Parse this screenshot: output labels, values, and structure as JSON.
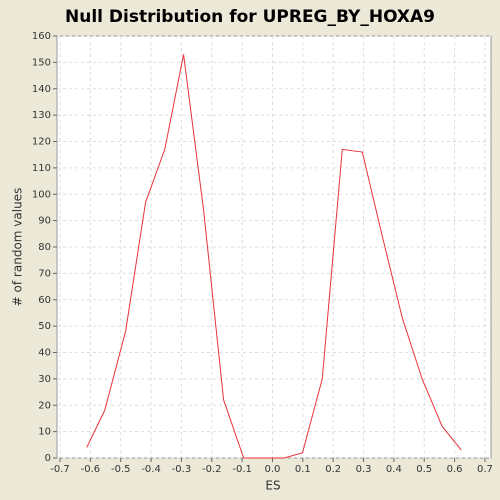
{
  "chart_data": {
    "type": "line",
    "title": "Null Distribution for UPREG_BY_HOXA9",
    "xlabel": "ES",
    "ylabel": "# of random values",
    "x": [
      -0.612,
      -0.553,
      -0.484,
      -0.418,
      -0.355,
      -0.293,
      -0.227,
      -0.161,
      -0.095,
      -0.03,
      0.039,
      0.099,
      0.164,
      0.23,
      0.296,
      0.362,
      0.428,
      0.493,
      0.559,
      0.622
    ],
    "series": [
      {
        "name": "null distribution",
        "color": "#e8323c",
        "values": [
          4,
          18,
          48,
          97,
          117,
          153,
          94,
          22,
          0,
          0,
          0,
          2,
          30,
          117,
          116,
          84,
          53,
          30,
          12,
          3
        ]
      }
    ],
    "xlim": [
      -0.71,
      0.72
    ],
    "xticks": [
      -0.7,
      -0.6,
      -0.5,
      -0.4,
      -0.3,
      -0.2,
      -0.1,
      {
        "value": 0,
        "label": "0.0"
      },
      0.1,
      0.2,
      0.3,
      0.4,
      0.5,
      0.6,
      0.7
    ],
    "ylim": [
      0,
      160
    ],
    "yticks": [
      0,
      10,
      20,
      30,
      40,
      50,
      60,
      70,
      80,
      90,
      100,
      110,
      120,
      130,
      140,
      150,
      160
    ],
    "grid": true
  }
}
